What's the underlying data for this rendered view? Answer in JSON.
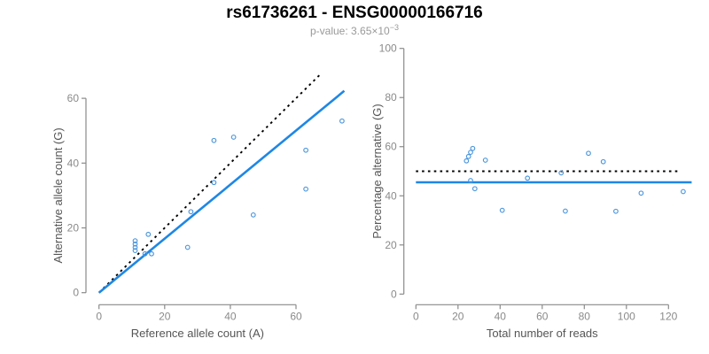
{
  "header": {
    "title": "rs61736261 - ENSG00000166716",
    "pvalue_prefix": "p-value: 3.65×10",
    "pvalue_exponent": "−3"
  },
  "colors": {
    "regression_blue": "#1E87E5",
    "point_blue": "#4D97DC",
    "reference_black": "#000000",
    "axis_gray": "#8A8A8A",
    "tick_label_gray": "#8A8A8A",
    "axis_label_gray": "#555555",
    "subtitle_gray": "#999999",
    "title_black": "#000000"
  },
  "chart_data": [
    {
      "type": "scatter",
      "panel": "allele-counts",
      "xlabel": "Reference allele count (A)",
      "ylabel": "Alternative allele count (G)",
      "xlim": [
        0,
        75
      ],
      "ylim": [
        0,
        68
      ],
      "xticks": [
        0,
        20,
        40,
        60
      ],
      "yticks": [
        0,
        20,
        40,
        60
      ],
      "grid": false,
      "legend": "none",
      "points": [
        [
          11,
          13
        ],
        [
          11,
          14
        ],
        [
          11,
          15
        ],
        [
          11,
          16
        ],
        [
          14,
          12
        ],
        [
          16,
          12
        ],
        [
          15,
          18
        ],
        [
          27,
          14
        ],
        [
          28,
          25
        ],
        [
          35,
          34
        ],
        [
          35,
          47
        ],
        [
          41,
          48
        ],
        [
          47,
          24
        ],
        [
          63,
          32
        ],
        [
          63,
          44
        ],
        [
          74,
          53
        ]
      ],
      "lines": [
        {
          "name": "identity-line",
          "style": "dotted",
          "color": "black",
          "x1": 0,
          "y1": 0,
          "x2": 67.5,
          "y2": 67.5
        },
        {
          "name": "regression-line",
          "style": "solid",
          "color": "blue",
          "x1": 0,
          "y1": 0,
          "x2": 74.7,
          "y2": 62.3
        }
      ]
    },
    {
      "type": "scatter",
      "panel": "percentage-vs-reads",
      "xlabel": "Total number of reads",
      "ylabel": "Percentage alternative (G)",
      "xlim": [
        0,
        131
      ],
      "ylim": [
        0,
        100
      ],
      "xticks": [
        0,
        20,
        40,
        60,
        80,
        100,
        120
      ],
      "yticks": [
        0,
        20,
        40,
        60,
        80,
        100
      ],
      "grid": false,
      "legend": "none",
      "points": [
        [
          24,
          54.2
        ],
        [
          25,
          56.0
        ],
        [
          26,
          57.7
        ],
        [
          27,
          59.3
        ],
        [
          26,
          46.2
        ],
        [
          28,
          42.9
        ],
        [
          33,
          54.5
        ],
        [
          41,
          34.1
        ],
        [
          53,
          47.2
        ],
        [
          69,
          49.3
        ],
        [
          71,
          33.8
        ],
        [
          82,
          57.3
        ],
        [
          89,
          53.9
        ],
        [
          95,
          33.7
        ],
        [
          107,
          41.1
        ],
        [
          127,
          41.7
        ]
      ],
      "lines": [
        {
          "name": "expected-percentage-line",
          "style": "dotted",
          "color": "black",
          "x1": 0,
          "y1": 50,
          "x2": 125,
          "y2": 50
        },
        {
          "name": "mean-percentage-line",
          "style": "solid",
          "color": "blue",
          "x1": 0,
          "y1": 45.5,
          "x2": 131,
          "y2": 45.5
        }
      ]
    }
  ]
}
